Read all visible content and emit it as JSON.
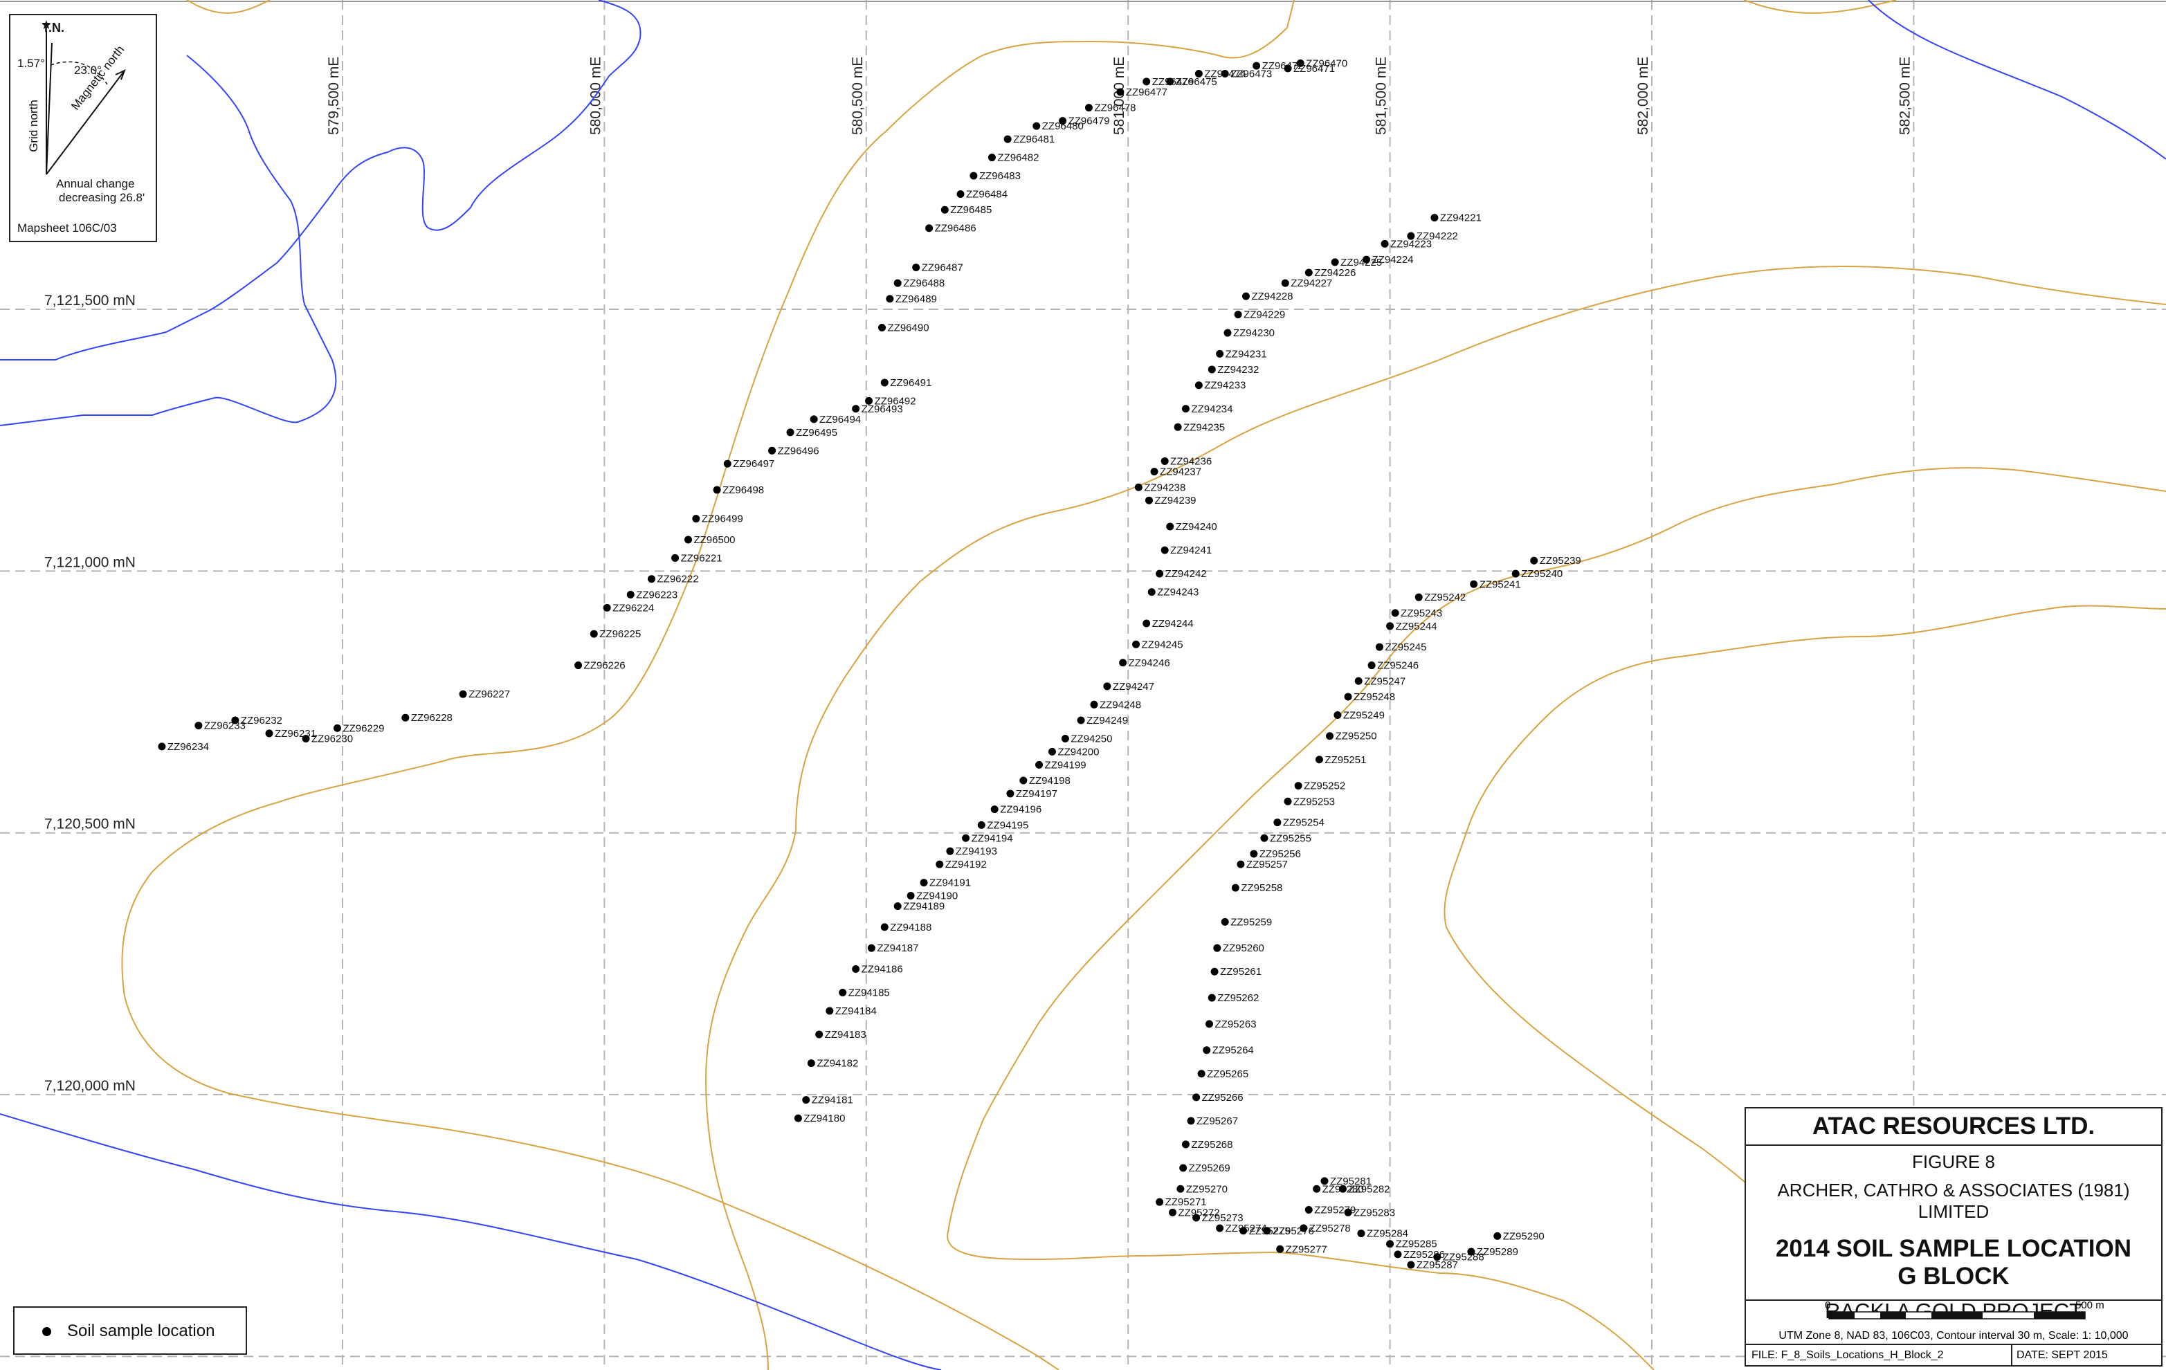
{
  "figure": {
    "company": "ATAC RESOURCES LTD.",
    "figure_number": "FIGURE 8",
    "consultant": "ARCHER, CATHRO & ASSOCIATES (1981) LIMITED",
    "title_line1": "2014 SOIL SAMPLE LOCATION",
    "title_line2": "G BLOCK",
    "project": "RACKLA GOLD PROJECT",
    "scale_start": "0",
    "scale_end": "500 m",
    "projection_note": "UTM Zone 8, NAD 83, 106C03, Contour interval 30 m, Scale: 1: 10,000",
    "file": "FILE: F_8_Soils_Locations_H_Block_2",
    "date": "DATE: SEPT 2015"
  },
  "north_arrow": {
    "true_north": "T.N.",
    "grid_convergence": "1.57°",
    "declination": "23.0°",
    "grid_north": "Grid north",
    "magnetic_north": "Magnetic north",
    "annual_change_1": "Annual change",
    "annual_change_2": "decreasing 26.8'",
    "mapsheet": "Mapsheet 106C/03"
  },
  "legend": {
    "soil_sample": "Soil sample location"
  },
  "colors": {
    "contour": "#d9a341",
    "stream": "#3344ff",
    "grid": "#b5b5b5",
    "sample": "#000000"
  },
  "eastings": [
    "579,500 mE",
    "580,000 mE",
    "580,500 mE",
    "581,000 mE",
    "581,500 mE",
    "582,000 mE",
    "582,500 mE"
  ],
  "northings": [
    "7,121,500 mN",
    "7,121,000 mN",
    "7,120,500 mN",
    "7,120,000 mN",
    "7,119,500 mN"
  ],
  "samples": [
    [
      "ZZ96470",
      581329,
      7121970
    ],
    [
      "ZZ96471",
      581305,
      7121960
    ],
    [
      "ZZ96472",
      581245,
      7121965
    ],
    [
      "ZZ96473",
      581185,
      7121950
    ],
    [
      "ZZ96474",
      581135,
      7121950
    ],
    [
      "ZZ96475",
      581080,
      7121935
    ],
    [
      "ZZ96476",
      581035,
      7121935
    ],
    [
      "ZZ96477",
      580985,
      7121915
    ],
    [
      "ZZ96478",
      580925,
      7121885
    ],
    [
      "ZZ96479",
      580875,
      7121860
    ],
    [
      "ZZ96480",
      580825,
      7121850
    ],
    [
      "ZZ96481",
      580770,
      7121825
    ],
    [
      "ZZ96482",
      580740,
      7121790
    ],
    [
      "ZZ96483",
      580705,
      7121755
    ],
    [
      "ZZ96484",
      580680,
      7121720
    ],
    [
      "ZZ96485",
      580650,
      7121690
    ],
    [
      "ZZ96486",
      580620,
      7121655
    ],
    [
      "ZZ96487",
      580595,
      7121580
    ],
    [
      "ZZ96488",
      580560,
      7121550
    ],
    [
      "ZZ96489",
      580545,
      7121520
    ],
    [
      "ZZ96490",
      580530,
      7121465
    ],
    [
      "ZZ96491",
      580535,
      7121360
    ],
    [
      "ZZ96492",
      580505,
      7121325
    ],
    [
      "ZZ96493",
      580480,
      7121310
    ],
    [
      "ZZ96494",
      580400,
      7121290
    ],
    [
      "ZZ96495",
      580355,
      7121265
    ],
    [
      "ZZ96496",
      580320,
      7121230
    ],
    [
      "ZZ96497",
      580235,
      7121205
    ],
    [
      "ZZ96498",
      580215,
      7121155
    ],
    [
      "ZZ96499",
      580175,
      7121100
    ],
    [
      "ZZ96500",
      580160,
      7121060
    ],
    [
      "ZZ96221",
      580135,
      7121025
    ],
    [
      "ZZ96222",
      580090,
      7120985
    ],
    [
      "ZZ96223",
      580050,
      7120955
    ],
    [
      "ZZ96224",
      580005,
      7120930
    ],
    [
      "ZZ96225",
      579980,
      7120880
    ],
    [
      "ZZ96226",
      579950,
      7120820
    ],
    [
      "ZZ96227",
      579730,
      7120765
    ],
    [
      "ZZ96228",
      579620,
      7120720
    ],
    [
      "ZZ96229",
      579490,
      7120700
    ],
    [
      "ZZ96230",
      579430,
      7120680
    ],
    [
      "ZZ96231",
      579360,
      7120690
    ],
    [
      "ZZ96232",
      579295,
      7120715
    ],
    [
      "ZZ96233",
      579225,
      7120705
    ],
    [
      "ZZ96234",
      579155,
      7120665
    ],
    [
      "ZZ94221",
      581585,
      7121675
    ],
    [
      "ZZ94222",
      581540,
      7121640
    ],
    [
      "ZZ94223",
      581490,
      7121625
    ],
    [
      "ZZ94224",
      581455,
      7121595
    ],
    [
      "ZZ94225",
      581395,
      7121590
    ],
    [
      "ZZ94226",
      581345,
      7121570
    ],
    [
      "ZZ94227",
      581300,
      7121550
    ],
    [
      "ZZ94228",
      581225,
      7121525
    ],
    [
      "ZZ94229",
      581210,
      7121490
    ],
    [
      "ZZ94230",
      581190,
      7121455
    ],
    [
      "ZZ94231",
      581175,
      7121415
    ],
    [
      "ZZ94232",
      581160,
      7121385
    ],
    [
      "ZZ94233",
      581135,
      7121355
    ],
    [
      "ZZ94234",
      581110,
      7121310
    ],
    [
      "ZZ94235",
      581095,
      7121275
    ],
    [
      "ZZ94236",
      581070,
      7121210
    ],
    [
      "ZZ94237",
      581050,
      7121190
    ],
    [
      "ZZ94238",
      581020,
      7121160
    ],
    [
      "ZZ94239",
      581040,
      7121135
    ],
    [
      "ZZ94240",
      581080,
      7121085
    ],
    [
      "ZZ94241",
      581070,
      7121040
    ],
    [
      "ZZ94242",
      581060,
      7120995
    ],
    [
      "ZZ94243",
      581045,
      7120960
    ],
    [
      "ZZ94244",
      581035,
      7120900
    ],
    [
      "ZZ94245",
      581015,
      7120860
    ],
    [
      "ZZ94246",
      580990,
      7120825
    ],
    [
      "ZZ94247",
      580960,
      7120780
    ],
    [
      "ZZ94248",
      580935,
      7120745
    ],
    [
      "ZZ94249",
      580910,
      7120715
    ],
    [
      "ZZ94250",
      580880,
      7120680
    ],
    [
      "ZZ94200",
      580855,
      7120655
    ],
    [
      "ZZ94199",
      580830,
      7120630
    ],
    [
      "ZZ94198",
      580800,
      7120600
    ],
    [
      "ZZ94197",
      580775,
      7120575
    ],
    [
      "ZZ94196",
      580745,
      7120545
    ],
    [
      "ZZ94195",
      580720,
      7120515
    ],
    [
      "ZZ94194",
      580690,
      7120490
    ],
    [
      "ZZ94193",
      580660,
      7120465
    ],
    [
      "ZZ94192",
      580640,
      7120440
    ],
    [
      "ZZ94191",
      580610,
      7120405
    ],
    [
      "ZZ94190",
      580585,
      7120380
    ],
    [
      "ZZ94189",
      580560,
      7120360
    ],
    [
      "ZZ94188",
      580535,
      7120320
    ],
    [
      "ZZ94187",
      580510,
      7120280
    ],
    [
      "ZZ94186",
      580480,
      7120240
    ],
    [
      "ZZ94185",
      580455,
      7120195
    ],
    [
      "ZZ94184",
      580430,
      7120160
    ],
    [
      "ZZ94183",
      580410,
      7120115
    ],
    [
      "ZZ94182",
      580395,
      7120060
    ],
    [
      "ZZ94181",
      580385,
      7119990
    ],
    [
      "ZZ94180",
      580370,
      7119955
    ],
    [
      "ZZ95239",
      581775,
      7121020
    ],
    [
      "ZZ95240",
      581740,
      7120995
    ],
    [
      "ZZ95241",
      581660,
      7120975
    ],
    [
      "ZZ95242",
      581555,
      7120950
    ],
    [
      "ZZ95243",
      581510,
      7120920
    ],
    [
      "ZZ95244",
      581500,
      7120895
    ],
    [
      "ZZ95245",
      581480,
      7120855
    ],
    [
      "ZZ95246",
      581465,
      7120820
    ],
    [
      "ZZ95247",
      581440,
      7120790
    ],
    [
      "ZZ95248",
      581420,
      7120760
    ],
    [
      "ZZ95249",
      581400,
      7120725
    ],
    [
      "ZZ95250",
      581385,
      7120685
    ],
    [
      "ZZ95251",
      581365,
      7120640
    ],
    [
      "ZZ95252",
      581325,
      7120590
    ],
    [
      "ZZ95253",
      581305,
      7120560
    ],
    [
      "ZZ95254",
      581285,
      7120520
    ],
    [
      "ZZ95255",
      581260,
      7120490
    ],
    [
      "ZZ95256",
      581240,
      7120460
    ],
    [
      "ZZ95257",
      581215,
      7120440
    ],
    [
      "ZZ95258",
      581205,
      7120395
    ],
    [
      "ZZ95259",
      581185,
      7120330
    ],
    [
      "ZZ95260",
      581170,
      7120280
    ],
    [
      "ZZ95261",
      581165,
      7120235
    ],
    [
      "ZZ95262",
      581160,
      7120185
    ],
    [
      "ZZ95263",
      581155,
      7120135
    ],
    [
      "ZZ95264",
      581150,
      7120085
    ],
    [
      "ZZ95265",
      581140,
      7120040
    ],
    [
      "ZZ95266",
      581130,
      7119995
    ],
    [
      "ZZ95267",
      581120,
      7119950
    ],
    [
      "ZZ95268",
      581110,
      7119905
    ],
    [
      "ZZ95269",
      581105,
      7119860
    ],
    [
      "ZZ95270",
      581100,
      7119820
    ],
    [
      "ZZ95271",
      581060,
      7119795
    ],
    [
      "ZZ95272",
      581085,
      7119775
    ],
    [
      "ZZ95273",
      581130,
      7119765
    ],
    [
      "ZZ95274",
      581175,
      7119745
    ],
    [
      "ZZ95275",
      581220,
      7119740
    ],
    [
      "ZZ95276",
      581265,
      7119740
    ],
    [
      "ZZ95277",
      581290,
      7119705
    ],
    [
      "ZZ95278",
      581335,
      7119745
    ],
    [
      "ZZ95279",
      581345,
      7119780
    ],
    [
      "ZZ95280",
      581360,
      7119820
    ],
    [
      "ZZ95281",
      581375,
      7119835
    ],
    [
      "ZZ95282",
      581410,
      7119820
    ],
    [
      "ZZ95283",
      581420,
      7119775
    ],
    [
      "ZZ95284",
      581445,
      7119735
    ],
    [
      "ZZ95285",
      581500,
      7119715
    ],
    [
      "ZZ95286",
      581515,
      7119695
    ],
    [
      "ZZ95287",
      581540,
      7119675
    ],
    [
      "ZZ95288",
      581590,
      7119690
    ],
    [
      "ZZ95289",
      581655,
      7119700
    ],
    [
      "ZZ95290",
      581705,
      7119730
    ]
  ]
}
